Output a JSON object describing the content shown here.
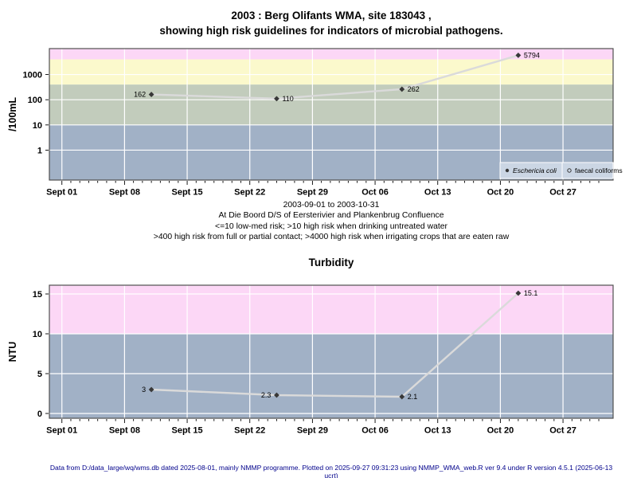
{
  "header": {
    "title_line1": "2003 : Berg Olifants WMA, site 183043 ,",
    "title_line2": "showing high risk guidelines for indicators of microbial pathogens."
  },
  "caption": {
    "line1": "2003-09-01 to 2003-10-31",
    "line2": "At Die Boord D/S of Eersterivier and Plankenbrug Confluence",
    "line3": "<=10 low-med risk; >10 high risk when drinking untreated water",
    "line4": ">400 high risk from full or partial contact; >4000 high risk when irrigating crops that are eaten raw"
  },
  "footer": {
    "text": "Data from D:/data_large/wq/wms.db dated 2025-08-01, mainly NMMP programme. Plotted on 2025-09-27 09:31:23 using NMMP_WMA_web.R ver 9.4 under R version 4.5.1 (2025-06-13 ucrt)"
  },
  "colors": {
    "band_pink": "#fcd7f6",
    "band_yellow": "#fbf9cc",
    "band_green": "#c2ccbc",
    "band_blue": "#a1b1c6",
    "gridline": "#ffffff",
    "frame": "#4f4f4f",
    "line": "#dadada",
    "marker": "#383838",
    "legend_fill": "#cbd6e4",
    "legend_border": "#ffffff",
    "footer_text": "#00008B",
    "text": "#000000"
  },
  "chart_data": [
    {
      "type": "line",
      "name": "microbial-indicators",
      "title": "",
      "ylabel": "/100mL",
      "yscale": "log",
      "ylim": [
        0.065,
        10700
      ],
      "yticks": [
        1,
        10,
        100,
        1000
      ],
      "x_start_date": "2003-09-01",
      "x_end_date": "2003-10-31",
      "x_domain_days": [
        -1.4,
        61.6
      ],
      "xtick_days": [
        0,
        7,
        14,
        21,
        28,
        35,
        42,
        49,
        56
      ],
      "xtick_labels": [
        "Sept 01",
        "Sept 08",
        "Sept 15",
        "Sept 22",
        "Sept 29",
        "Oct 06",
        "Oct 13",
        "Oct 20",
        "Oct 27"
      ],
      "minor_tick_last_day": 60,
      "bands": [
        {
          "from": 4000,
          "to": 10700,
          "color_key": "band_pink"
        },
        {
          "from": 400,
          "to": 4000,
          "color_key": "band_yellow"
        },
        {
          "from": 10,
          "to": 400,
          "color_key": "band_green"
        },
        {
          "from": 0.065,
          "to": 10,
          "color_key": "band_blue"
        }
      ],
      "series": [
        {
          "name": "Eschericia coli",
          "dates": [
            "2003-09-11",
            "2003-09-25",
            "2003-10-09",
            "2003-10-22"
          ],
          "values": [
            162,
            110,
            262,
            5794
          ],
          "point_labels": [
            "162",
            "110",
            "262",
            "5794"
          ],
          "label_side": [
            "left",
            "right",
            "right",
            "right"
          ]
        }
      ],
      "legend": {
        "items": [
          {
            "label": "Eschericia coli",
            "marker": "filled-circle",
            "italic": true
          },
          {
            "label": "faecal coliforms",
            "marker": "open-circle",
            "italic": false
          }
        ]
      }
    },
    {
      "type": "line",
      "name": "turbidity",
      "title": "Turbidity",
      "ylabel": "NTU",
      "yscale": "linear",
      "ylim": [
        -0.6,
        16.1
      ],
      "yticks": [
        0,
        5,
        10,
        15
      ],
      "x_start_date": "2003-09-01",
      "x_end_date": "2003-10-31",
      "x_domain_days": [
        -1.4,
        61.6
      ],
      "xtick_days": [
        0,
        7,
        14,
        21,
        28,
        35,
        42,
        49,
        56
      ],
      "xtick_labels": [
        "Sept 01",
        "Sept 08",
        "Sept 15",
        "Sept 22",
        "Sept 29",
        "Oct 06",
        "Oct 13",
        "Oct 20",
        "Oct 27"
      ],
      "minor_tick_last_day": 60,
      "bands": [
        {
          "from": 10,
          "to": 16.1,
          "color_key": "band_pink"
        },
        {
          "from": -0.6,
          "to": 10,
          "color_key": "band_blue"
        }
      ],
      "series": [
        {
          "name": "Turbidity",
          "dates": [
            "2003-09-11",
            "2003-09-25",
            "2003-10-09",
            "2003-10-22"
          ],
          "values": [
            3,
            2.3,
            2.1,
            15.1
          ],
          "point_labels": [
            "3",
            "2.3",
            "2.1",
            "15.1"
          ],
          "label_side": [
            "left",
            "left",
            "right",
            "right"
          ]
        }
      ]
    }
  ]
}
